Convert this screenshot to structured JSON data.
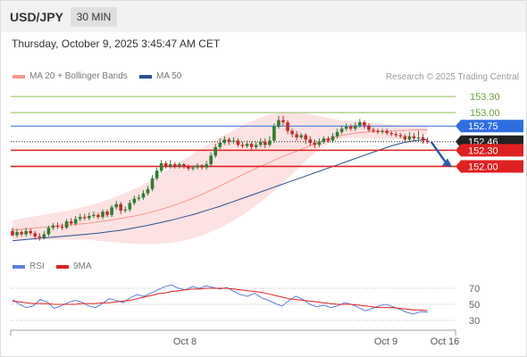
{
  "header": {
    "symbol": "USD/JPY",
    "timeframe": "30 MIN",
    "datetime": "Thursday, October 9, 2025 3:45:47 AM CET"
  },
  "legend": {
    "items": [
      {
        "label": "MA 20 + Bollinger Bands",
        "color": "#f4978e"
      },
      {
        "label": "MA 50",
        "color": "#2a4f8f"
      }
    ],
    "copyright": "Research © 2025 Trading Central"
  },
  "chart_data": [
    {
      "type": "candlestick",
      "title": "USD/JPY",
      "ylim": [
        150.35,
        153.5
      ],
      "levels": [
        {
          "value": "153.30",
          "price": 153.3,
          "color": "#8bbf5a",
          "style": "line",
          "label_style": "text"
        },
        {
          "value": "153.00",
          "price": 153.0,
          "color": "#8bbf5a",
          "style": "line",
          "label_style": "text"
        },
        {
          "value": "152.75",
          "price": 152.75,
          "color": "#2f6ee0",
          "style": "line",
          "label_style": "box"
        },
        {
          "value": "152.46",
          "price": 152.46,
          "color": "#222222",
          "style": "dotted",
          "label_style": "box"
        },
        {
          "value": "152.30",
          "price": 152.3,
          "color": "#e02020",
          "style": "line",
          "label_style": "box"
        },
        {
          "value": "152.00",
          "price": 152.0,
          "color": "#e02020",
          "style": "line",
          "label_style": "box"
        }
      ],
      "x_ticks": [
        "Oct 8",
        "Oct 9",
        "Oct 16"
      ],
      "forecast_arrow": {
        "from": 152.46,
        "to": 152.0,
        "color": "#2a5aa8"
      },
      "candles": [
        [
          150.8,
          150.72,
          150.86,
          150.7
        ],
        [
          150.72,
          150.78,
          150.84,
          150.68
        ],
        [
          150.78,
          150.74,
          150.82,
          150.7
        ],
        [
          150.74,
          150.8,
          150.86,
          150.7
        ],
        [
          150.8,
          150.76,
          150.85,
          150.72
        ],
        [
          150.76,
          150.7,
          150.8,
          150.64
        ],
        [
          150.7,
          150.68,
          150.76,
          150.62
        ],
        [
          150.68,
          150.74,
          150.8,
          150.64
        ],
        [
          150.74,
          150.86,
          150.9,
          150.7
        ],
        [
          150.86,
          150.9,
          150.95,
          150.82
        ],
        [
          150.9,
          150.88,
          150.96,
          150.84
        ],
        [
          150.88,
          150.86,
          150.94,
          150.82
        ],
        [
          150.86,
          150.98,
          151.02,
          150.84
        ],
        [
          150.98,
          150.94,
          151.04,
          150.9
        ],
        [
          150.94,
          151.02,
          151.08,
          150.9
        ],
        [
          151.02,
          151.06,
          151.12,
          150.98
        ],
        [
          151.06,
          151.04,
          151.12,
          151.0
        ],
        [
          151.04,
          151.08,
          151.14,
          151.0
        ],
        [
          151.08,
          151.1,
          151.16,
          151.04
        ],
        [
          151.1,
          151.06,
          151.14,
          151.02
        ],
        [
          151.06,
          151.16,
          151.2,
          151.02
        ],
        [
          151.16,
          151.1,
          151.2,
          151.06
        ],
        [
          151.1,
          151.24,
          151.28,
          151.06
        ],
        [
          151.24,
          151.3,
          151.36,
          151.2
        ],
        [
          151.3,
          151.18,
          151.34,
          151.12
        ],
        [
          151.18,
          151.2,
          151.26,
          151.14
        ],
        [
          151.2,
          151.32,
          151.38,
          151.16
        ],
        [
          151.32,
          151.4,
          151.46,
          151.28
        ],
        [
          151.4,
          151.42,
          151.48,
          151.36
        ],
        [
          151.42,
          151.5,
          151.56,
          151.38
        ],
        [
          151.5,
          151.58,
          151.64,
          151.46
        ],
        [
          151.58,
          151.78,
          151.84,
          151.54
        ],
        [
          151.78,
          151.92,
          151.98,
          151.74
        ],
        [
          151.92,
          152.06,
          152.12,
          151.88
        ],
        [
          152.06,
          152.0,
          152.1,
          151.96
        ],
        [
          152.0,
          152.04,
          152.12,
          151.96
        ],
        [
          152.04,
          152.0,
          152.08,
          151.96
        ],
        [
          152.0,
          152.04,
          152.08,
          151.96
        ],
        [
          152.04,
          152.0,
          152.06,
          151.96
        ],
        [
          152.0,
          151.96,
          152.04,
          151.92
        ],
        [
          151.96,
          151.98,
          152.02,
          151.92
        ],
        [
          151.98,
          152.02,
          152.06,
          151.94
        ],
        [
          152.02,
          151.98,
          152.04,
          151.94
        ],
        [
          151.98,
          152.04,
          152.1,
          151.94
        ],
        [
          152.04,
          152.2,
          152.26,
          152.0
        ],
        [
          152.2,
          152.36,
          152.42,
          152.16
        ],
        [
          152.36,
          152.44,
          152.52,
          152.32
        ],
        [
          152.44,
          152.5,
          152.56,
          152.4
        ],
        [
          152.5,
          152.46,
          152.54,
          152.4
        ],
        [
          152.46,
          152.48,
          152.54,
          152.42
        ],
        [
          152.48,
          152.4,
          152.52,
          152.36
        ],
        [
          152.4,
          152.38,
          152.46,
          152.34
        ],
        [
          152.38,
          152.42,
          152.48,
          152.34
        ],
        [
          152.42,
          152.36,
          152.46,
          152.3
        ],
        [
          152.36,
          152.4,
          152.46,
          152.32
        ],
        [
          152.4,
          152.46,
          152.52,
          152.36
        ],
        [
          152.46,
          152.4,
          152.52,
          152.34
        ],
        [
          152.4,
          152.48,
          152.56,
          152.36
        ],
        [
          152.48,
          152.74,
          152.8,
          152.44
        ],
        [
          152.74,
          152.86,
          152.94,
          152.7
        ],
        [
          152.86,
          152.82,
          152.94,
          152.76
        ],
        [
          152.82,
          152.66,
          152.86,
          152.6
        ],
        [
          152.66,
          152.6,
          152.7,
          152.54
        ],
        [
          152.6,
          152.54,
          152.66,
          152.48
        ],
        [
          152.54,
          152.58,
          152.62,
          152.5
        ],
        [
          152.58,
          152.5,
          152.62,
          152.42
        ],
        [
          152.5,
          152.44,
          152.56,
          152.38
        ],
        [
          152.44,
          152.4,
          152.5,
          152.34
        ],
        [
          152.4,
          152.46,
          152.52,
          152.36
        ],
        [
          152.46,
          152.52,
          152.56,
          152.42
        ],
        [
          152.52,
          152.48,
          152.56,
          152.44
        ],
        [
          152.48,
          152.56,
          152.62,
          152.44
        ],
        [
          152.56,
          152.64,
          152.7,
          152.52
        ],
        [
          152.64,
          152.7,
          152.76,
          152.6
        ],
        [
          152.7,
          152.74,
          152.8,
          152.66
        ],
        [
          152.74,
          152.7,
          152.78,
          152.66
        ],
        [
          152.7,
          152.76,
          152.82,
          152.66
        ],
        [
          152.76,
          152.82,
          152.88,
          152.72
        ],
        [
          152.82,
          152.76,
          152.86,
          152.7
        ],
        [
          152.76,
          152.68,
          152.8,
          152.64
        ],
        [
          152.68,
          152.66,
          152.72,
          152.62
        ],
        [
          152.66,
          152.64,
          152.7,
          152.6
        ],
        [
          152.64,
          152.66,
          152.7,
          152.6
        ],
        [
          152.66,
          152.62,
          152.7,
          152.58
        ],
        [
          152.62,
          152.6,
          152.66,
          152.56
        ],
        [
          152.6,
          152.58,
          152.64,
          152.54
        ],
        [
          152.58,
          152.56,
          152.62,
          152.52
        ],
        [
          152.56,
          152.5,
          152.6,
          152.46
        ],
        [
          152.5,
          152.56,
          152.64,
          152.46
        ],
        [
          152.56,
          152.52,
          152.62,
          152.48
        ],
        [
          152.52,
          152.54,
          152.66,
          152.48
        ],
        [
          152.54,
          152.48,
          152.6,
          152.42
        ],
        [
          152.48,
          152.46,
          152.54,
          152.42
        ]
      ],
      "ma20": [
        150.82,
        150.84,
        150.86,
        150.88,
        150.9,
        150.92,
        150.94,
        150.97,
        151.0,
        151.04,
        151.08,
        151.13,
        151.19,
        151.26,
        151.34,
        151.43,
        151.53,
        151.64,
        151.75,
        151.86,
        151.97,
        152.07,
        152.17,
        152.26,
        152.35,
        152.44,
        152.52,
        152.58,
        152.62,
        152.64,
        152.65,
        152.66,
        152.67,
        152.68,
        152.68
      ],
      "ma50": [
        150.62,
        150.64,
        150.66,
        150.68,
        150.7,
        150.72,
        150.74,
        150.76,
        150.79,
        150.82,
        150.86,
        150.9,
        150.95,
        151.0,
        151.06,
        151.12,
        151.19,
        151.26,
        151.34,
        151.42,
        151.5,
        151.58,
        151.66,
        151.74,
        151.82,
        151.9,
        151.98,
        152.06,
        152.14,
        152.22,
        152.3,
        152.38,
        152.44,
        152.48,
        152.5
      ],
      "bb_upper": [
        151.0,
        151.04,
        151.08,
        151.12,
        151.16,
        151.2,
        151.26,
        151.32,
        151.4,
        151.48,
        151.58,
        151.7,
        151.84,
        151.98,
        152.12,
        152.26,
        152.4,
        152.54,
        152.66,
        152.78,
        152.88,
        152.96,
        153.0,
        153.0,
        152.98,
        152.94,
        152.9,
        152.86,
        152.84,
        152.82,
        152.8,
        152.78,
        152.76,
        152.75,
        152.74
      ],
      "bb_lower": [
        150.64,
        150.64,
        150.64,
        150.64,
        150.64,
        150.64,
        150.64,
        150.62,
        150.6,
        150.58,
        150.56,
        150.56,
        150.56,
        150.58,
        150.62,
        150.68,
        150.76,
        150.86,
        150.98,
        151.12,
        151.28,
        151.46,
        151.66,
        151.88,
        152.1,
        152.3,
        152.44,
        152.52,
        152.54,
        152.52,
        152.5,
        152.5,
        152.52,
        152.56,
        152.6
      ]
    },
    {
      "type": "line",
      "title": "RSI",
      "ylim": [
        20,
        80
      ],
      "y_ticks": [
        "70",
        "50",
        "30"
      ],
      "series": [
        {
          "name": "RSI",
          "color": "#5b7fd6",
          "values": [
            56,
            50,
            46,
            48,
            56,
            53,
            45,
            48,
            52,
            55,
            53,
            48,
            46,
            51,
            57,
            55,
            52,
            58,
            62,
            60,
            64,
            68,
            72,
            74,
            70,
            68,
            72,
            70,
            73,
            71,
            69,
            71,
            66,
            62,
            60,
            64,
            58,
            55,
            51,
            48,
            55,
            60,
            56,
            50,
            47,
            49,
            46,
            48,
            52,
            50,
            46,
            42,
            45,
            48,
            50,
            47,
            44,
            40,
            38,
            41,
            40
          ]
        },
        {
          "name": "9MA",
          "color": "#e02020",
          "values": [
            54,
            53,
            52,
            51,
            51,
            51,
            50,
            50,
            50,
            50,
            51,
            51,
            51,
            52,
            52,
            53,
            54,
            55,
            57,
            59,
            61,
            63,
            64,
            66,
            67,
            68,
            69,
            69,
            70,
            70,
            70,
            70,
            69,
            68,
            67,
            66,
            65,
            63,
            61,
            59,
            57,
            56,
            55,
            54,
            53,
            52,
            51,
            50,
            50,
            50,
            49,
            48,
            47,
            46,
            46,
            46,
            45,
            44,
            43,
            43,
            42
          ]
        }
      ]
    }
  ]
}
